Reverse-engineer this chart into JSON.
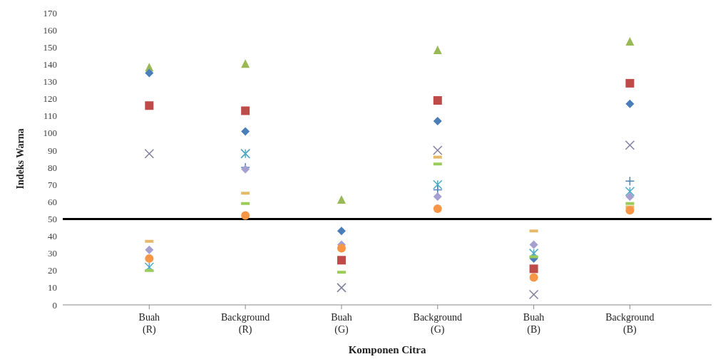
{
  "chart_data": {
    "type": "scatter",
    "xlabel": "Komponen Citra",
    "ylabel": "Indeks Warna",
    "categories": [
      "Buah\n(R)",
      "Background\n(R)",
      "Buah\n(G)",
      "Background\n(G)",
      "Buah\n(B)",
      "Background\n(B)"
    ],
    "ylim": [
      0,
      170
    ],
    "yticks": [
      0,
      10,
      20,
      30,
      40,
      50,
      60,
      70,
      80,
      90,
      100,
      110,
      120,
      130,
      140,
      150,
      160,
      170
    ],
    "grid": false,
    "legend": false,
    "ref_lines": [
      {
        "axis": "y",
        "value": 50,
        "color": "#000000"
      }
    ],
    "series": [
      {
        "color": "#98b954",
        "marker": "triangle",
        "values": [
          138,
          140,
          61,
          148,
          null,
          153
        ]
      },
      {
        "color": "#be4b48",
        "marker": "square",
        "values": [
          116,
          113,
          26,
          119,
          21,
          129
        ]
      },
      {
        "color": "#4a7ebb",
        "marker": "diamond",
        "values": [
          135,
          101,
          43,
          107,
          27,
          117
        ]
      },
      {
        "color": "#7f7f9f",
        "marker": "cross",
        "values": [
          88,
          88,
          10,
          90,
          6,
          93
        ]
      },
      {
        "color": "#4bacc6",
        "marker": "cross",
        "values": [
          22,
          88,
          null,
          70,
          30,
          66
        ]
      },
      {
        "color": "#4f81bd",
        "marker": "plus",
        "values": [
          null,
          80,
          null,
          67,
          null,
          72
        ]
      },
      {
        "color": "#a5a0d0",
        "marker": "diamond",
        "values": [
          32,
          79,
          35,
          63,
          35,
          63
        ]
      },
      {
        "color": "#e6b96a",
        "marker": "square",
        "values": [
          37,
          65,
          null,
          86,
          43,
          57
        ]
      },
      {
        "color": "#9bcb59",
        "marker": "square",
        "values": [
          20,
          59,
          19,
          82,
          28,
          59
        ]
      },
      {
        "color": "#f79646",
        "marker": "circle",
        "values": [
          27,
          52,
          33,
          56,
          16,
          55
        ]
      }
    ]
  }
}
